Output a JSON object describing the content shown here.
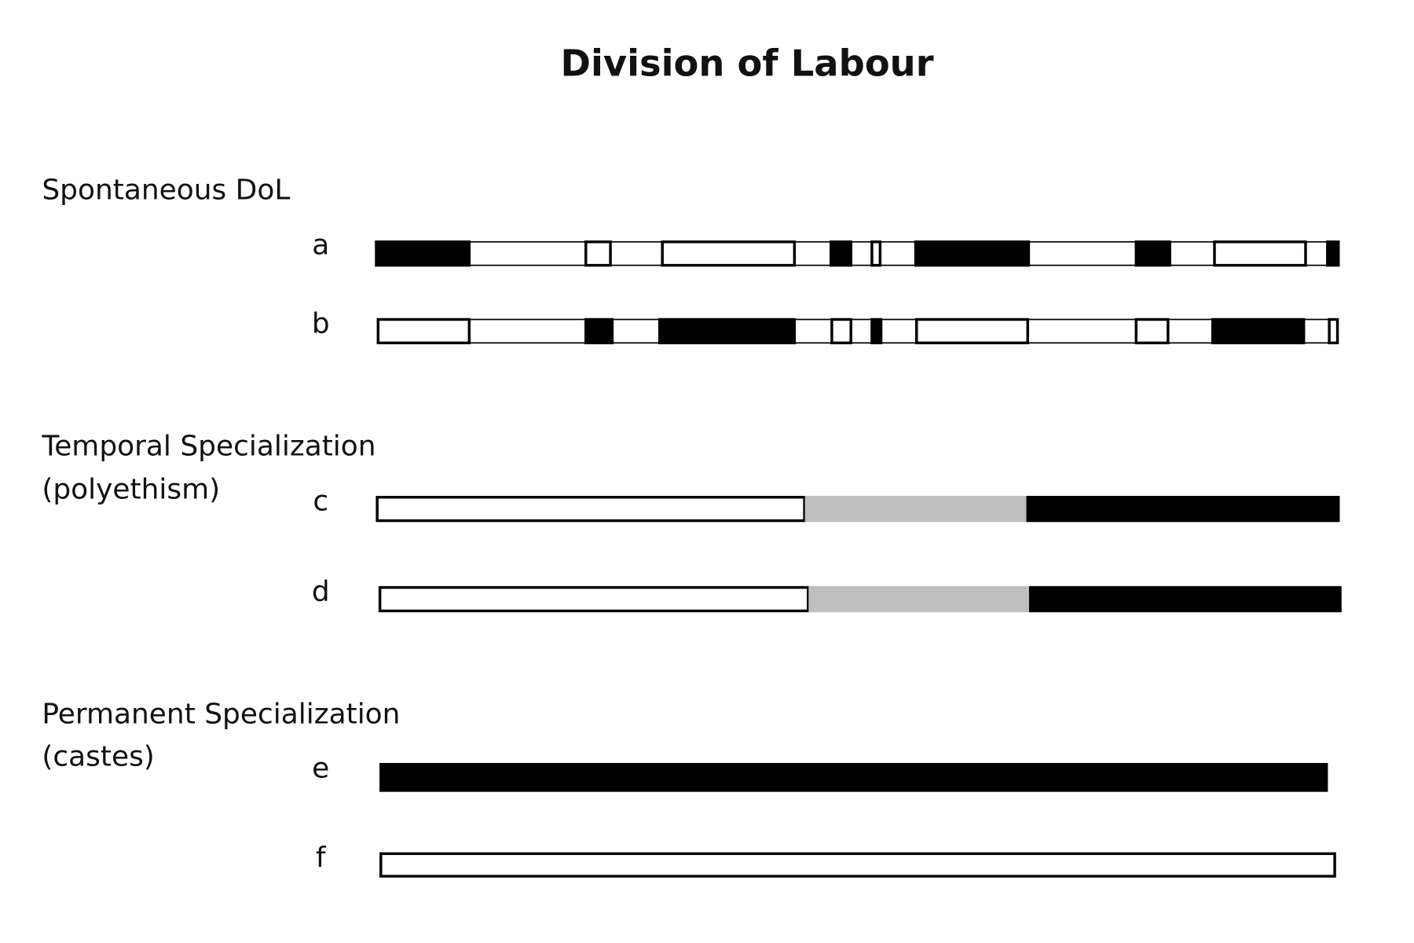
{
  "title": "Division of Labour",
  "sections": [
    {
      "label": [
        "Spontaneous DoL"
      ],
      "rows": [
        {
          "label": "a"
        },
        {
          "label": "b"
        }
      ]
    },
    {
      "label": [
        "Temporal Specialization",
        "(polyethism)"
      ],
      "rows": [
        {
          "label": "c"
        },
        {
          "label": "d"
        }
      ]
    },
    {
      "label": [
        "Permanent Specialization",
        "(castes)"
      ],
      "rows": [
        {
          "label": "e"
        },
        {
          "label": "f"
        }
      ]
    }
  ]
}
